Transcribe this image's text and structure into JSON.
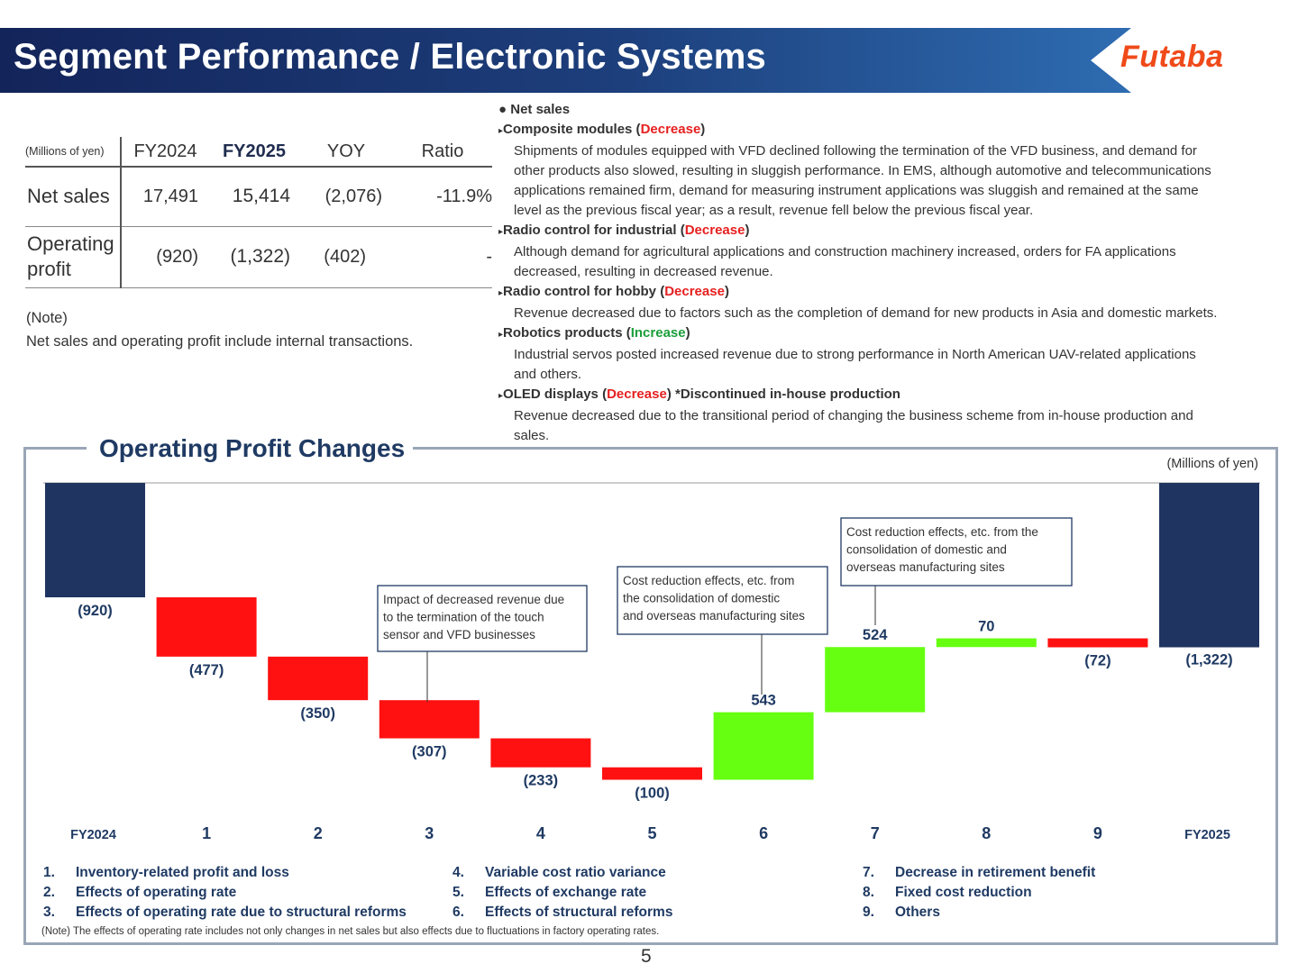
{
  "header": {
    "title": "Segment Performance / Electronic Systems",
    "logo": "Futaba"
  },
  "table": {
    "units": "(Millions of  yen)",
    "columns": [
      "FY2024",
      "FY2025",
      "YOY",
      "Ratio"
    ],
    "rows": [
      {
        "label": "Net sales",
        "fy2024": "17,491",
        "fy2025": "15,414",
        "yoy": "(2,076)",
        "ratio": "-11.9%"
      },
      {
        "label_line1": "Operating",
        "label_line2": "profit",
        "fy2024": "(920)",
        "fy2025": "(1,322)",
        "yoy": "(402)",
        "ratio": "-"
      }
    ]
  },
  "table_note": {
    "title": "(Note)",
    "text": "Net sales and operating profit include internal transactions."
  },
  "notes": {
    "heading": "Net sales",
    "items": [
      {
        "title": "Composite modules",
        "status": "Decrease",
        "suffix": "",
        "lines": [
          "Shipments of modules equipped with VFD declined following the termination of the VFD business, and demand for",
          "other products also slowed, resulting in sluggish performance. In EMS, although automotive and telecommunications",
          "applications remained firm, demand for measuring instrument applications was sluggish and remained at the same",
          "level as the previous fiscal year; as a result, revenue fell below the previous fiscal year."
        ]
      },
      {
        "title": "Radio control for industrial",
        "status": "Decrease",
        "suffix": "",
        "lines": [
          "Although demand for agricultural applications and construction machinery increased, orders for FA applications",
          "decreased, resulting in decreased revenue."
        ]
      },
      {
        "title": "Radio control for hobby",
        "status": "Decrease",
        "suffix": "",
        "lines": [
          "Revenue decreased due to factors such as the completion of demand for new products in Asia and domestic markets."
        ]
      },
      {
        "title": "Robotics products",
        "status": "Increase",
        "suffix": "",
        "lines": [
          "Industrial servos posted increased revenue due to strong performance in North American UAV-related applications",
          "and others."
        ]
      },
      {
        "title": "OLED displays",
        "status": "Decrease",
        "suffix": " *Discontinued in-house production",
        "lines": [
          "Revenue decreased due to the transitional period of changing the business scheme from in-house production and",
          "sales."
        ]
      }
    ]
  },
  "chart_section": {
    "title": "Operating Profit Changes",
    "units": "(Millions of yen)"
  },
  "colors": {
    "total": "#1f3460",
    "negative": "#ff1111",
    "positive": "#66ff11",
    "header_dark": "#13245a"
  },
  "chart_data": {
    "type": "bar",
    "subtype": "waterfall",
    "categories": [
      "FY2024",
      "1",
      "2",
      "3",
      "4",
      "5",
      "6",
      "7",
      "8",
      "9",
      "FY2025"
    ],
    "values": [
      -920,
      -477,
      -350,
      -307,
      -233,
      -100,
      543,
      524,
      70,
      -72,
      -1322
    ],
    "labels": [
      "(920)",
      "(477)",
      "(350)",
      "(307)",
      "(233)",
      "(100)",
      "543",
      "524",
      "70",
      "(72)",
      "(1,322)"
    ],
    "kinds": [
      "total",
      "delta",
      "delta",
      "delta",
      "delta",
      "delta",
      "delta",
      "delta",
      "delta",
      "delta",
      "total"
    ],
    "annotations": [
      {
        "category": "3",
        "text": [
          "Impact of decreased revenue due",
          "to the termination of the touch",
          "sensor and VFD businesses"
        ]
      },
      {
        "category": "6",
        "text": [
          "Cost reduction effects, etc. from",
          "the consolidation of domestic",
          "and overseas manufacturing sites"
        ]
      },
      {
        "category": "7",
        "text": [
          "Cost reduction effects, etc. from the",
          "consolidation of domestic and",
          "overseas manufacturing sites"
        ]
      }
    ]
  },
  "legend": {
    "col1": [
      {
        "n": "1.",
        "t": "Inventory-related profit and loss"
      },
      {
        "n": "2.",
        "t": "Effects of operating rate"
      },
      {
        "n": "3.",
        "t": "Effects of operating rate due to structural reforms"
      }
    ],
    "col2": [
      {
        "n": "4.",
        "t": "Variable cost ratio variance"
      },
      {
        "n": "5.",
        "t": "Effects of exchange rate"
      },
      {
        "n": "6.",
        "t": "Effects of structural reforms"
      }
    ],
    "col3": [
      {
        "n": "7.",
        "t": "Decrease in retirement benefit"
      },
      {
        "n": "8.",
        "t": "Fixed cost reduction"
      },
      {
        "n": "9.",
        "t": "Others"
      }
    ]
  },
  "chart_note": "(Note) The effects of operating rate includes not only changes in net sales but also effects due to fluctuations in factory operating rates.",
  "page_number": "5"
}
